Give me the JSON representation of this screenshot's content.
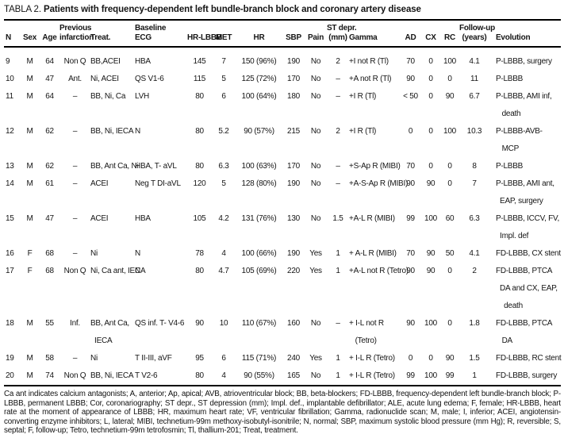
{
  "title": {
    "prefix": "TABLA 2.",
    "text": "Patients with frequency-dependent left bundle-branch block and coronary artery disease"
  },
  "table": {
    "headers": [
      "N",
      "Sex",
      "Age",
      "Previous\ninfarction",
      "Treat.",
      "Baseline\nECG",
      "HR-LBBB",
      "MET",
      "HR",
      "SBP",
      "Pain",
      "ST depr.\n(mm)",
      "Gamma",
      "AD",
      "CX",
      "RC",
      "Follow-up\n(years)",
      "Evolution"
    ],
    "rows": [
      [
        "9",
        "M",
        "64",
        "Non Q",
        "BB,ACEI",
        "HBA",
        "145",
        "7",
        "150 (96%)",
        "190",
        "No",
        "2",
        "+I not R (Tl)",
        "70",
        "0",
        "100",
        "4.1",
        "P-LBBB, surgery"
      ],
      [
        "10",
        "M",
        "47",
        "Ant.",
        "Ni, ACEI",
        "QS V1-6",
        "115",
        "5",
        "125 (72%)",
        "170",
        "No",
        "–",
        "+A not R (Tl)",
        "90",
        "0",
        "0",
        "11",
        "P-LBBB"
      ],
      [
        "11",
        "M",
        "64",
        "–",
        "BB, Ni, Ca",
        "LVH",
        "80",
        "6",
        "100 (64%)",
        "180",
        "No",
        "–",
        "+I R (Tl)",
        "< 50",
        "0",
        "90",
        "6.7",
        "P-LBBB, AMI inf,\n   death"
      ],
      [
        "12",
        "M",
        "62",
        "–",
        "BB, Ni, IECA",
        "N",
        "80",
        "5.2",
        "90 (57%)",
        "215",
        "No",
        "2",
        "+I R (Tl)",
        "0",
        "0",
        "100",
        "10.3",
        "P-LBBB-AVB-\n   MCP"
      ],
      [
        "13",
        "M",
        "62",
        "–",
        "BB, Ant Ca, Ni",
        "HBA, T- aVL",
        "80",
        "6.3",
        "100 (63%)",
        "170",
        "No",
        "–",
        "+S-Ap R (MIBI)",
        "70",
        "0",
        "0",
        "8",
        "P-LBBB"
      ],
      [
        "14",
        "M",
        "61",
        "–",
        "ACEI",
        "Neg T DI-aVL",
        "120",
        "5",
        "128 (80%)",
        "190",
        "No",
        "–",
        "+A-S-Ap R (MIBI)",
        "90",
        "90",
        "0",
        "7",
        "P-LBBB, AMI ant,\n  EAP, surgery"
      ],
      [
        "15",
        "M",
        "47",
        "–",
        "ACEI",
        "HBA",
        "105",
        "4.2",
        "131 (76%)",
        "130",
        "No",
        "1.5",
        "+A-L R (MIBI)",
        "99",
        "100",
        "60",
        "6.3",
        "P-LBBB, ICCV, FV,\n  Impl. def"
      ],
      [
        "16",
        "F",
        "68",
        "–",
        "Ni",
        "N",
        "78",
        "4",
        "100 (66%)",
        "190",
        "Yes",
        "1",
        "+ A-L R (MIBI)",
        "70",
        "90",
        "50",
        "4.1",
        "FD-LBBB, CX stent"
      ],
      [
        "17",
        "F",
        "68",
        "Non Q",
        "Ni, Ca ant, IECA",
        "N",
        "80",
        "4.7",
        "105 (69%)",
        "220",
        "Yes",
        "1",
        "+A-L not R (Tetro)",
        "90",
        "90",
        "0",
        "2",
        "FD-LBBB, PTCA\n  DA and CX, EAP,\n    death"
      ],
      [
        "18",
        "M",
        "55",
        "Inf.",
        "BB, Ant Ca,\n  IECA",
        "QS inf. T- V4-6",
        "90",
        "10",
        "110 (67%)",
        "160",
        "No",
        "–",
        "+ I-L not R\n   (Tetro)",
        "90",
        "100",
        "0",
        "1.8",
        "FD-LBBB, PTCA\n   DA"
      ],
      [
        "19",
        "M",
        "58",
        "–",
        "Ni",
        "T II-III, aVF",
        "95",
        "6",
        "115 (71%)",
        "240",
        "Yes",
        "1",
        "+ I-L R (Tetro)",
        "0",
        "0",
        "90",
        "1.5",
        "FD-LBBB, RC stent"
      ],
      [
        "20",
        "M",
        "74",
        "Non Q",
        "BB, Ni, IECA",
        "T V2-6",
        "80",
        "4",
        "90 (55%)",
        "165",
        "No",
        "1",
        "+ I-L R (Tetro)",
        "99",
        "100",
        "99",
        "1",
        "FD-LBBB, surgery"
      ]
    ]
  },
  "footnote": "Ca ant indicates calcium antagonists; A, anterior; Ap, apical; AVB, atrioventricular block; BB, beta-blockers; FD-LBBB, frequency-dependent left bundle-branch block; P-LBBB, permanent LBBB; Cor, coronariography; ST depr., ST depression (mm); Impl. def., implantable defibrillator; ALE, acute lung edema; F, female; HR-LBBB, heart rate at the moment of appearance of LBBB; HR, maximum heart rate; VF, ventricular fibrillation; Gamma, radionuclide scan; M, male; I, inferior; ACEI, angiotensin-converting enzyme inhibitors; L, lateral; MIBI, technetium-99m methoxy-isobutyl-isonitrile; N, normal; SBP, maximum systolic blood pressure (mm Hg); R, reversible; S, septal; F, follow-up; Tetro, technetium-99m tetrofosmin; Tl, thallium-201; Treat, treatment."
}
